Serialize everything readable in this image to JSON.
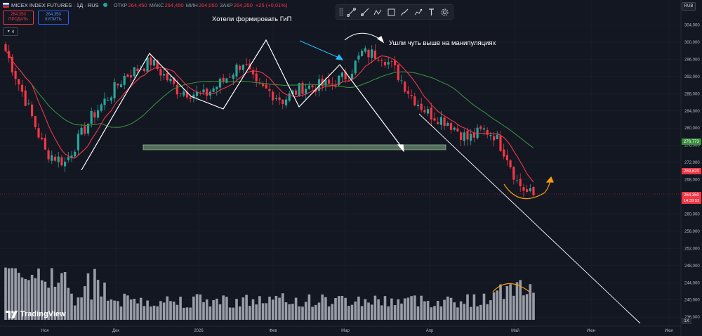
{
  "header": {
    "symbol": "MICEX INDEX FUTURES · 1Д · RUS",
    "open_label": "ОТКР",
    "open_value": "264,450",
    "high_label": "МАКС",
    "high_value": "264,450",
    "low_label": "МИН",
    "low_value": "264,050",
    "close_label": "ЗАКР",
    "close_value": "264,350",
    "change": "+25 (+0,01%)"
  },
  "trade": {
    "sell_price": "264,350",
    "sell_label": "ПРОДАТЬ",
    "buy_price": "264,350",
    "buy_label": "КУПИТЬ"
  },
  "indicators_toggle": "4",
  "currency": "RUB",
  "scale_button": "1X",
  "logo_text": "TradingView",
  "annotations": {
    "top": "Хотели формировать ГиП",
    "manip": "Ушли чуть выше на манипуляциях"
  },
  "price_labels": {
    "ma_green": "276,773",
    "ma_red": "269,620",
    "last": "264,350",
    "countdown": "14:39:53"
  },
  "colors": {
    "background": "#131722",
    "up": "#26a69a",
    "down": "#f23645",
    "ma_red": "#f23645",
    "ma_green": "#388e3c",
    "volume": "#b2b5be",
    "green_label": "#388e3c",
    "annotation_blue": "#29b6f6",
    "annotation_orange": "#f59d0c",
    "zone": "#a5d6a7"
  },
  "toolbar_icons": [
    "grip-icon",
    "trendline-icon",
    "ray-icon",
    "polyline-icon",
    "rectangle-icon",
    "brush-icon",
    "path-icon",
    "text-icon",
    "settings-icon"
  ],
  "chart_data": {
    "type": "candlestick",
    "y_axis": {
      "ticks": [
        "304,000",
        "300,000",
        "296,000",
        "292,000",
        "288,000",
        "284,000",
        "280,000",
        "276,000",
        "272,000",
        "268,000",
        "264,000",
        "260,000",
        "256,000",
        "252,000",
        "248,000",
        "244,000",
        "240,000",
        "236,000"
      ],
      "range": [
        236000,
        306000
      ]
    },
    "x_axis": {
      "ticks": [
        "Ноя",
        "Дек",
        "2026",
        "Фев",
        "Мар",
        "Апр",
        "Май",
        "Июн",
        "Июл"
      ]
    },
    "pivots": [
      {
        "d": 0,
        "c": 298000
      },
      {
        "d": 6,
        "c": 286500
      },
      {
        "d": 12,
        "c": 274500
      },
      {
        "d": 18,
        "c": 272000
      },
      {
        "d": 26,
        "c": 282500
      },
      {
        "d": 36,
        "c": 292000
      },
      {
        "d": 44,
        "c": 295500
      },
      {
        "d": 52,
        "c": 289000
      },
      {
        "d": 60,
        "c": 287500
      },
      {
        "d": 66,
        "c": 291000
      },
      {
        "d": 72,
        "c": 295500
      },
      {
        "d": 76,
        "c": 289500
      },
      {
        "d": 80,
        "c": 288500
      },
      {
        "d": 84,
        "c": 286500
      },
      {
        "d": 90,
        "c": 289500
      },
      {
        "d": 98,
        "c": 290000
      },
      {
        "d": 104,
        "c": 292500
      },
      {
        "d": 108,
        "c": 297500
      },
      {
        "d": 114,
        "c": 297000
      },
      {
        "d": 118,
        "c": 293500
      },
      {
        "d": 123,
        "c": 287500
      },
      {
        "d": 128,
        "c": 283500
      },
      {
        "d": 134,
        "c": 281500
      },
      {
        "d": 140,
        "c": 277500
      },
      {
        "d": 145,
        "c": 279500
      },
      {
        "d": 148,
        "c": 278500
      },
      {
        "d": 152,
        "c": 273500
      },
      {
        "d": 155,
        "c": 267500
      },
      {
        "d": 158,
        "c": 265000
      },
      {
        "d": 160,
        "c": 264350
      }
    ],
    "volume_scale": {
      "max": 100,
      "unit": "relative"
    }
  }
}
